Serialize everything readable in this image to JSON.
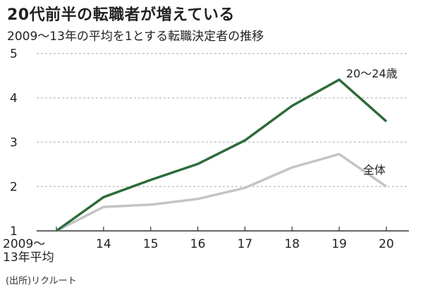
{
  "title": "20代前半の転職者が増えている",
  "subtitle": "2009～13年の平均を1とする転職決定者の推移",
  "source": "(出所)リクルート",
  "chart_data": {
    "type": "line",
    "categories": [
      "2009～\n13年平均",
      "14",
      "15",
      "16",
      "17",
      "18",
      "19",
      "20"
    ],
    "ylim": [
      1,
      5
    ],
    "yticks": [
      1,
      2,
      3,
      4,
      5
    ],
    "grid": "horizontal dashed",
    "series": [
      {
        "name": "20～24歳",
        "color": "#2e6b3a",
        "values": [
          1.0,
          1.76,
          2.15,
          2.51,
          3.04,
          3.82,
          4.41,
          3.47
        ]
      },
      {
        "name": "全体",
        "color": "#c4c4c4",
        "values": [
          1.0,
          1.54,
          1.59,
          1.72,
          1.97,
          2.43,
          2.73,
          2.0
        ]
      }
    ]
  }
}
